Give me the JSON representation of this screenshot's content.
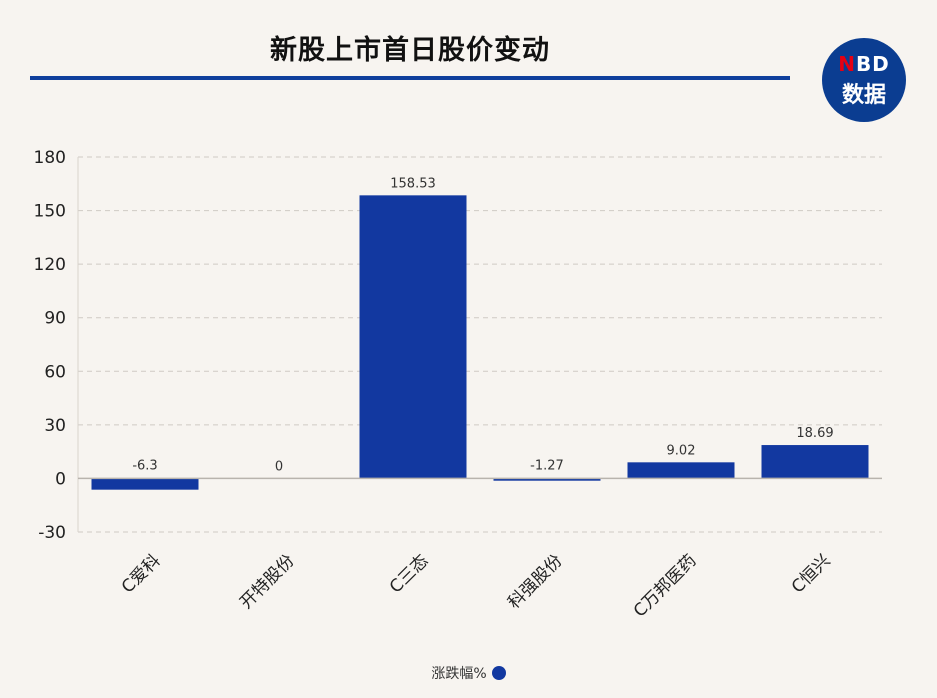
{
  "title": "新股上市首日股价变动",
  "logo": {
    "line1_n": "N",
    "line1_rest": "BD",
    "line2": "数据"
  },
  "legend": {
    "label": "涨跌幅%",
    "color": "#1238a0"
  },
  "chart_data": {
    "type": "bar",
    "title": "新股上市首日股价变动",
    "categories": [
      "C爱科",
      "开特股份",
      "C三态",
      "科强股份",
      "C万邦医药",
      "C恒兴"
    ],
    "series": [
      {
        "name": "涨跌幅%",
        "values": [
          -6.3,
          0,
          158.53,
          -1.27,
          9.02,
          18.69
        ]
      }
    ],
    "value_labels": [
      "-6.3",
      "0",
      "158.53",
      "-1.27",
      "9.02",
      "18.69"
    ],
    "yticks": [
      -30,
      0,
      30,
      60,
      90,
      120,
      150,
      180
    ],
    "ylim": [
      -30,
      180
    ],
    "grid": true,
    "legend_position": "bottom",
    "bar_color": "#1238a0"
  }
}
